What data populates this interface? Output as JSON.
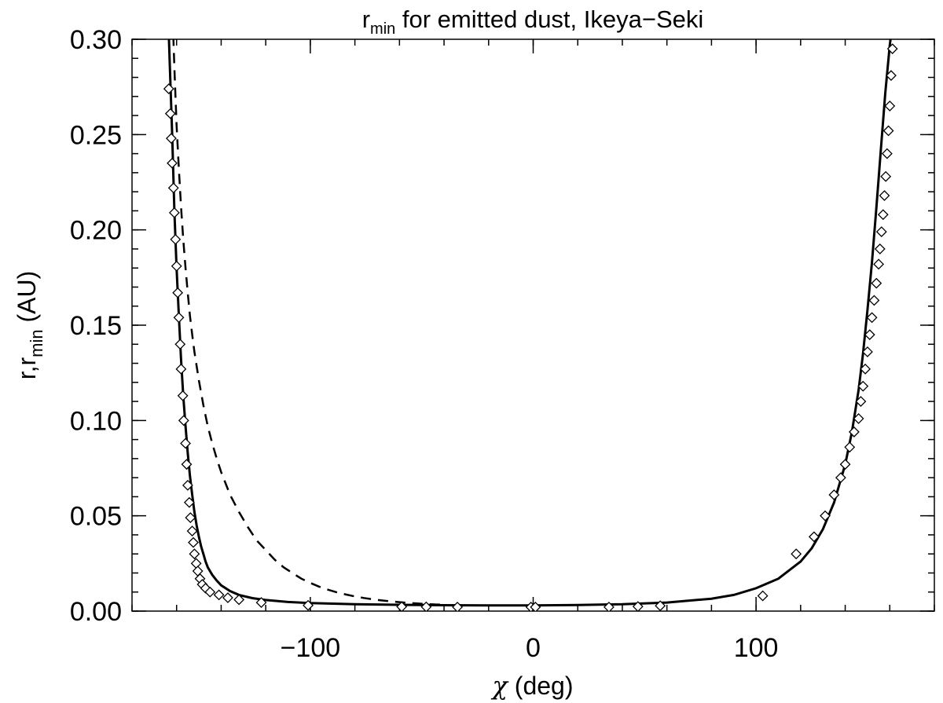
{
  "chart_data": {
    "type": "line",
    "title": {
      "base": "r",
      "subscript": "min",
      "rest": " for emitted dust, Ikeya−Seki"
    },
    "xlabel": {
      "symbol": "χ",
      "unit": " (deg)"
    },
    "ylabel": {
      "lead": "r,r",
      "subscript": "min",
      "unit": " (AU)"
    },
    "xlim": [
      -180,
      180
    ],
    "ylim": [
      0,
      0.3
    ],
    "xticks_major": [
      -100,
      0,
      100
    ],
    "xtick_labels": [
      "−100",
      "0",
      "100"
    ],
    "xticks_minor_step": 20,
    "yticks_major": [
      0.0,
      0.05,
      0.1,
      0.15,
      0.2,
      0.25,
      0.3
    ],
    "ytick_labels": [
      "0.00",
      "0.05",
      "0.10",
      "0.15",
      "0.20",
      "0.25",
      "0.30"
    ],
    "yticks_minor_step": 0.01,
    "grid": false,
    "legend": "none",
    "series": [
      {
        "style": "solid",
        "color": "#000000",
        "x": [
          -164,
          -163,
          -162,
          -161,
          -160,
          -159,
          -158,
          -157,
          -156,
          -155,
          -154,
          -153,
          -152,
          -151,
          -150,
          -149,
          -148,
          -147,
          -146,
          -144,
          -142,
          -140,
          -136,
          -132,
          -126,
          -120,
          -110,
          -100,
          -80,
          -60,
          -40,
          -20,
          0,
          20,
          40,
          60,
          80,
          90,
          100,
          110,
          120,
          125,
          130,
          135,
          140,
          143,
          146,
          148,
          150,
          152,
          154,
          156,
          158,
          160,
          162,
          164
        ],
        "y": [
          0.32,
          0.285,
          0.25,
          0.21,
          0.18,
          0.155,
          0.132,
          0.113,
          0.097,
          0.083,
          0.071,
          0.061,
          0.052,
          0.045,
          0.039,
          0.034,
          0.03,
          0.026,
          0.023,
          0.019,
          0.016,
          0.0135,
          0.0105,
          0.0085,
          0.0068,
          0.0058,
          0.0048,
          0.0042,
          0.0036,
          0.0033,
          0.0031,
          0.003,
          0.003,
          0.0032,
          0.0036,
          0.0045,
          0.0065,
          0.0085,
          0.012,
          0.017,
          0.026,
          0.033,
          0.043,
          0.057,
          0.077,
          0.094,
          0.116,
          0.135,
          0.158,
          0.183,
          0.212,
          0.242,
          0.272,
          0.297,
          0.315,
          0.33
        ]
      },
      {
        "style": "dashed",
        "color": "#000000",
        "x": [
          -162,
          -161,
          -160,
          -159,
          -158,
          -157,
          -156,
          -155,
          -154,
          -153,
          -152,
          -150,
          -148,
          -146,
          -144,
          -142,
          -140,
          -136,
          -132,
          -128,
          -124,
          -120,
          -116,
          -112,
          -108,
          -104,
          -100,
          -96,
          -92,
          -88,
          -84,
          -80,
          -76,
          -72,
          -68,
          -64,
          -60,
          -56,
          -52,
          -48,
          -44,
          -40
        ],
        "y": [
          0.32,
          0.285,
          0.255,
          0.232,
          0.212,
          0.195,
          0.18,
          0.167,
          0.155,
          0.145,
          0.136,
          0.121,
          0.108,
          0.097,
          0.088,
          0.08,
          0.073,
          0.061,
          0.052,
          0.044,
          0.037,
          0.032,
          0.027,
          0.023,
          0.02,
          0.017,
          0.0148,
          0.0128,
          0.0112,
          0.0098,
          0.0087,
          0.0077,
          0.0069,
          0.0062,
          0.0056,
          0.0051,
          0.0047,
          0.0043,
          0.004,
          0.0037,
          0.0035,
          0.0034
        ]
      },
      {
        "style": "diamond-markers",
        "color": "#000000",
        "x": [
          -163.5,
          -162.8,
          -162.4,
          -162,
          -161.4,
          -161,
          -160.5,
          -160,
          -159.5,
          -159,
          -158.4,
          -158,
          -157.2,
          -156.8,
          -156,
          -155.5,
          -155,
          -154.3,
          -153.8,
          -153,
          -152.5,
          -152,
          -151.2,
          -150.5,
          -149.5,
          -148.5,
          -147,
          -145,
          -141,
          -137,
          -132,
          -122,
          -101,
          -59,
          -48,
          -34,
          -1,
          1,
          34,
          47,
          57,
          103,
          118,
          126,
          131,
          135,
          138,
          140,
          142,
          144,
          146,
          147,
          148,
          149,
          150,
          151,
          152,
          153,
          154,
          155,
          155.6,
          156.3,
          157,
          157.6,
          158.2,
          158.8,
          159.4,
          160,
          160.6,
          161.2
        ],
        "y": [
          0.274,
          0.261,
          0.248,
          0.235,
          0.222,
          0.209,
          0.195,
          0.181,
          0.167,
          0.154,
          0.14,
          0.127,
          0.113,
          0.1,
          0.088,
          0.077,
          0.066,
          0.057,
          0.049,
          0.042,
          0.036,
          0.03,
          0.025,
          0.021,
          0.017,
          0.014,
          0.012,
          0.01,
          0.0085,
          0.007,
          0.006,
          0.0045,
          0.003,
          0.0023,
          0.0022,
          0.0021,
          0.0021,
          0.0021,
          0.0021,
          0.0024,
          0.0028,
          0.008,
          0.03,
          0.039,
          0.05,
          0.061,
          0.07,
          0.077,
          0.086,
          0.094,
          0.101,
          0.11,
          0.118,
          0.127,
          0.136,
          0.145,
          0.154,
          0.163,
          0.172,
          0.182,
          0.19,
          0.199,
          0.208,
          0.218,
          0.228,
          0.24,
          0.252,
          0.265,
          0.281,
          0.295
        ]
      }
    ]
  }
}
